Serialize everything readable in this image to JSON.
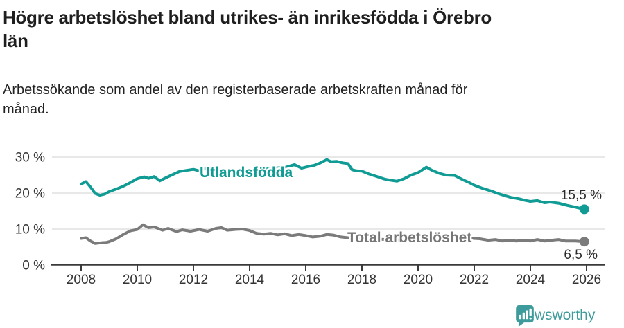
{
  "header": {
    "title_line1": "Högre arbetslöshet bland utrikes- än inrikesfödda i Örebro",
    "title_line2": "län",
    "subtitle_line1": "Arbetssökande som andel av den registerbaserade arbetskraften månad för",
    "subtitle_line2": "månad."
  },
  "chart_data": {
    "type": "line",
    "title": "Högre arbetslöshet bland utrikes- än inrikesfödda i Örebro län",
    "subtitle": "Arbetssökande som andel av den registerbaserade arbetskraften månad för månad.",
    "unit": "%",
    "grid": "horizontal",
    "x_axis": {
      "ticks": [
        2008,
        2010,
        2012,
        2014,
        2016,
        2018,
        2020,
        2022,
        2024,
        2026
      ],
      "range": [
        2008,
        2026
      ]
    },
    "y_axis": {
      "tick_values": [
        0,
        10,
        20,
        30
      ],
      "tick_labels": [
        "0 %",
        "10 %",
        "20 %",
        "30 %"
      ],
      "range": [
        0,
        33
      ]
    },
    "colors": {
      "teal": "#109b94",
      "gray": "#7b7b7b",
      "gridline": "#d9d9d9",
      "axis": "#3a3a3a"
    },
    "series": [
      {
        "name": "Utlandsfödda",
        "color": "#109b94",
        "end_label": "15,5 %",
        "end_value": 15.5,
        "points": [
          [
            2008.0,
            22.5
          ],
          [
            2008.17,
            23.2
          ],
          [
            2008.33,
            21.7
          ],
          [
            2008.5,
            19.9
          ],
          [
            2008.67,
            19.4
          ],
          [
            2008.83,
            19.7
          ],
          [
            2009.0,
            20.4
          ],
          [
            2009.25,
            21.1
          ],
          [
            2009.5,
            21.9
          ],
          [
            2009.75,
            22.9
          ],
          [
            2010.0,
            24.0
          ],
          [
            2010.25,
            24.5
          ],
          [
            2010.4,
            24.1
          ],
          [
            2010.6,
            24.6
          ],
          [
            2010.8,
            23.4
          ],
          [
            2011.0,
            24.2
          ],
          [
            2011.25,
            25.1
          ],
          [
            2011.5,
            26.0
          ],
          [
            2011.75,
            26.3
          ],
          [
            2012.0,
            26.6
          ],
          [
            2012.2,
            26.2
          ],
          [
            2012.4,
            26.8
          ],
          [
            2012.7,
            26.4
          ],
          [
            2013.0,
            26.1
          ],
          [
            2013.3,
            26.4
          ],
          [
            2013.6,
            26.2
          ],
          [
            2014.0,
            26.5
          ],
          [
            2014.3,
            26.3
          ],
          [
            2014.6,
            26.7
          ],
          [
            2015.0,
            27.0
          ],
          [
            2015.3,
            27.2
          ],
          [
            2015.6,
            27.9
          ],
          [
            2015.85,
            26.9
          ],
          [
            2016.1,
            27.4
          ],
          [
            2016.3,
            27.7
          ],
          [
            2016.5,
            28.3
          ],
          [
            2016.75,
            29.3
          ],
          [
            2016.9,
            28.7
          ],
          [
            2017.1,
            28.8
          ],
          [
            2017.3,
            28.4
          ],
          [
            2017.5,
            28.2
          ],
          [
            2017.65,
            26.5
          ],
          [
            2017.8,
            26.2
          ],
          [
            2018.0,
            26.1
          ],
          [
            2018.25,
            25.3
          ],
          [
            2018.5,
            24.7
          ],
          [
            2018.8,
            23.9
          ],
          [
            2019.0,
            23.6
          ],
          [
            2019.25,
            23.3
          ],
          [
            2019.5,
            24.0
          ],
          [
            2019.75,
            25.0
          ],
          [
            2020.0,
            25.7
          ],
          [
            2020.3,
            27.2
          ],
          [
            2020.5,
            26.3
          ],
          [
            2020.75,
            25.5
          ],
          [
            2021.0,
            25.0
          ],
          [
            2021.3,
            24.9
          ],
          [
            2021.6,
            23.7
          ],
          [
            2021.8,
            23.0
          ],
          [
            2022.0,
            22.2
          ],
          [
            2022.3,
            21.3
          ],
          [
            2022.6,
            20.6
          ],
          [
            2022.8,
            20.0
          ],
          [
            2023.0,
            19.5
          ],
          [
            2023.3,
            18.8
          ],
          [
            2023.6,
            18.4
          ],
          [
            2023.8,
            18.0
          ],
          [
            2024.0,
            17.7
          ],
          [
            2024.25,
            17.9
          ],
          [
            2024.5,
            17.3
          ],
          [
            2024.7,
            17.5
          ],
          [
            2025.0,
            17.2
          ],
          [
            2025.3,
            16.6
          ],
          [
            2025.6,
            16.1
          ],
          [
            2025.92,
            15.5
          ]
        ]
      },
      {
        "name": "Total arbetslöshet",
        "color": "#7b7b7b",
        "end_label": "6,5 %",
        "end_value": 6.5,
        "points": [
          [
            2008.0,
            7.4
          ],
          [
            2008.17,
            7.6
          ],
          [
            2008.33,
            6.7
          ],
          [
            2008.5,
            6.0
          ],
          [
            2008.7,
            6.2
          ],
          [
            2008.9,
            6.3
          ],
          [
            2009.0,
            6.5
          ],
          [
            2009.25,
            7.3
          ],
          [
            2009.5,
            8.5
          ],
          [
            2009.75,
            9.5
          ],
          [
            2010.0,
            9.9
          ],
          [
            2010.2,
            11.2
          ],
          [
            2010.4,
            10.4
          ],
          [
            2010.6,
            10.6
          ],
          [
            2010.9,
            9.7
          ],
          [
            2011.1,
            10.2
          ],
          [
            2011.4,
            9.3
          ],
          [
            2011.6,
            9.8
          ],
          [
            2011.9,
            9.4
          ],
          [
            2012.2,
            9.9
          ],
          [
            2012.5,
            9.4
          ],
          [
            2012.8,
            10.2
          ],
          [
            2013.0,
            10.4
          ],
          [
            2013.2,
            9.7
          ],
          [
            2013.5,
            9.9
          ],
          [
            2013.75,
            10.0
          ],
          [
            2014.0,
            9.6
          ],
          [
            2014.25,
            8.8
          ],
          [
            2014.5,
            8.6
          ],
          [
            2014.75,
            8.8
          ],
          [
            2015.0,
            8.4
          ],
          [
            2015.25,
            8.7
          ],
          [
            2015.5,
            8.2
          ],
          [
            2015.75,
            8.5
          ],
          [
            2016.0,
            8.2
          ],
          [
            2016.25,
            7.8
          ],
          [
            2016.5,
            8.0
          ],
          [
            2016.75,
            8.5
          ],
          [
            2017.0,
            8.3
          ],
          [
            2017.25,
            7.8
          ],
          [
            2017.5,
            7.6
          ],
          [
            2018.0,
            7.4
          ],
          [
            2018.5,
            7.2
          ],
          [
            2019.0,
            7.1
          ],
          [
            2019.5,
            7.0
          ],
          [
            2020.0,
            7.6
          ],
          [
            2020.3,
            8.4
          ],
          [
            2020.75,
            8.2
          ],
          [
            2021.25,
            7.9
          ],
          [
            2021.75,
            7.5
          ],
          [
            2022.2,
            7.3
          ],
          [
            2022.5,
            6.9
          ],
          [
            2022.75,
            7.1
          ],
          [
            2023.0,
            6.7
          ],
          [
            2023.25,
            6.9
          ],
          [
            2023.5,
            6.7
          ],
          [
            2023.75,
            6.9
          ],
          [
            2024.0,
            6.7
          ],
          [
            2024.25,
            7.1
          ],
          [
            2024.5,
            6.7
          ],
          [
            2024.75,
            6.9
          ],
          [
            2025.0,
            7.1
          ],
          [
            2025.25,
            6.7
          ],
          [
            2025.6,
            6.7
          ],
          [
            2025.92,
            6.5
          ]
        ]
      }
    ]
  },
  "footer": {
    "brand": "Newsworthy",
    "brand_color": "#3d9b9b",
    "logo_icon": "newsworthy-bar-chart-bubble-icon"
  }
}
